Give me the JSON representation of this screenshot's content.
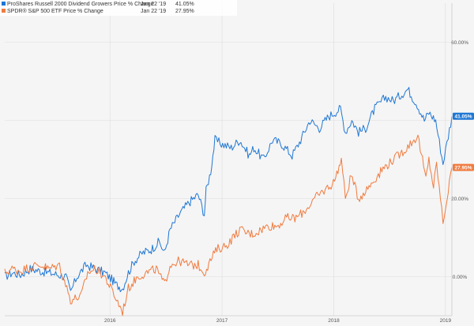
{
  "chart_data": {
    "type": "line",
    "title": "",
    "xlabel": "",
    "ylabel": "",
    "x_range": [
      "2015-01-22",
      "2019-01-22"
    ],
    "ylim": [
      -10,
      70
    ],
    "y_ticks": [
      {
        "value": 0,
        "label": "0.00%"
      },
      {
        "value": 20,
        "label": "20.00%"
      },
      {
        "value": 40,
        "label": ""
      },
      {
        "value": 60,
        "label": "60.00%"
      }
    ],
    "x_ticks": [
      {
        "date": "2016-01-01",
        "label": "2016"
      },
      {
        "date": "2017-01-01",
        "label": "2017"
      },
      {
        "date": "2018-01-01",
        "label": "2018"
      },
      {
        "date": "2019-01-01",
        "label": "2019"
      }
    ],
    "grid": true,
    "legend_position": "top-left",
    "series": [
      {
        "name": "ProShares Russell 2000 Dividend Growers Price % Change",
        "legend_date": "Jan 22 '19",
        "legend_value": "41.05%",
        "end_label": "41.05%",
        "color": "#1f77d4",
        "points": [
          [
            "2015-01-22",
            0
          ],
          [
            "2015-02-15",
            1
          ],
          [
            "2015-03-15",
            0.5
          ],
          [
            "2015-04-15",
            2
          ],
          [
            "2015-05-15",
            1.5
          ],
          [
            "2015-06-15",
            1
          ],
          [
            "2015-07-15",
            0.5
          ],
          [
            "2015-08-10",
            0
          ],
          [
            "2015-08-25",
            -4
          ],
          [
            "2015-09-15",
            0
          ],
          [
            "2015-10-15",
            3
          ],
          [
            "2015-11-15",
            2
          ],
          [
            "2015-12-15",
            1
          ],
          [
            "2016-01-10",
            -1
          ],
          [
            "2016-01-20",
            -2
          ],
          [
            "2016-02-11",
            -3
          ],
          [
            "2016-03-01",
            1
          ],
          [
            "2016-03-20",
            4
          ],
          [
            "2016-04-15",
            6
          ],
          [
            "2016-05-15",
            7
          ],
          [
            "2016-06-10",
            9
          ],
          [
            "2016-06-27",
            6
          ],
          [
            "2016-07-15",
            12
          ],
          [
            "2016-08-15",
            16
          ],
          [
            "2016-09-15",
            19
          ],
          [
            "2016-10-15",
            21
          ],
          [
            "2016-11-04",
            16
          ],
          [
            "2016-11-10",
            22
          ],
          [
            "2016-11-25",
            27
          ],
          [
            "2016-12-09",
            35
          ],
          [
            "2016-12-30",
            34
          ],
          [
            "2017-01-31",
            33
          ],
          [
            "2017-02-28",
            35
          ],
          [
            "2017-03-31",
            31
          ],
          [
            "2017-04-15",
            33
          ],
          [
            "2017-05-17",
            30
          ],
          [
            "2017-06-15",
            35
          ],
          [
            "2017-07-15",
            34
          ],
          [
            "2017-08-18",
            31
          ],
          [
            "2017-09-15",
            35
          ],
          [
            "2017-10-15",
            40
          ],
          [
            "2017-11-15",
            38
          ],
          [
            "2017-12-15",
            41
          ],
          [
            "2018-01-23",
            43
          ],
          [
            "2018-02-08",
            37
          ],
          [
            "2018-03-01",
            40
          ],
          [
            "2018-03-23",
            37
          ],
          [
            "2018-04-15",
            38
          ],
          [
            "2018-05-15",
            43
          ],
          [
            "2018-06-20",
            46
          ],
          [
            "2018-07-15",
            45
          ],
          [
            "2018-08-31",
            48
          ],
          [
            "2018-09-15",
            46
          ],
          [
            "2018-10-01",
            44
          ],
          [
            "2018-10-24",
            40
          ],
          [
            "2018-11-08",
            42
          ],
          [
            "2018-11-30",
            40
          ],
          [
            "2018-12-24",
            29
          ],
          [
            "2019-01-10",
            36
          ],
          [
            "2019-01-22",
            41.05
          ]
        ]
      },
      {
        "name": "SPDR® S&P 500 ETF Price % Change",
        "legend_date": "Jan 22 '19",
        "legend_value": "27.95%",
        "end_label": "27.95%",
        "color": "#f07b3f",
        "points": [
          [
            "2015-01-22",
            1
          ],
          [
            "2015-02-15",
            2
          ],
          [
            "2015-03-15",
            1.5
          ],
          [
            "2015-04-15",
            2.5
          ],
          [
            "2015-05-20",
            3
          ],
          [
            "2015-06-15",
            2
          ],
          [
            "2015-07-20",
            3
          ],
          [
            "2015-08-25",
            -6
          ],
          [
            "2015-09-28",
            -5
          ],
          [
            "2015-10-20",
            1
          ],
          [
            "2015-11-15",
            2
          ],
          [
            "2015-12-15",
            0
          ],
          [
            "2016-01-10",
            -4
          ],
          [
            "2016-02-11",
            -9
          ],
          [
            "2016-03-01",
            -3
          ],
          [
            "2016-03-31",
            0
          ],
          [
            "2016-04-30",
            1
          ],
          [
            "2016-05-31",
            2
          ],
          [
            "2016-06-27",
            -2
          ],
          [
            "2016-07-15",
            3
          ],
          [
            "2016-08-15",
            4
          ],
          [
            "2016-09-15",
            3
          ],
          [
            "2016-10-15",
            3
          ],
          [
            "2016-11-04",
            1
          ],
          [
            "2016-11-30",
            5
          ],
          [
            "2016-12-15",
            7
          ],
          [
            "2017-01-15",
            8
          ],
          [
            "2017-02-28",
            12
          ],
          [
            "2017-03-31",
            11
          ],
          [
            "2017-04-15",
            11
          ],
          [
            "2017-05-31",
            13
          ],
          [
            "2017-06-30",
            13
          ],
          [
            "2017-07-31",
            15
          ],
          [
            "2017-08-31",
            15
          ],
          [
            "2017-09-30",
            17
          ],
          [
            "2017-10-31",
            20
          ],
          [
            "2017-11-30",
            22
          ],
          [
            "2017-12-31",
            24
          ],
          [
            "2018-01-26",
            30
          ],
          [
            "2018-02-08",
            20
          ],
          [
            "2018-02-27",
            26
          ],
          [
            "2018-03-23",
            20
          ],
          [
            "2018-04-15",
            22
          ],
          [
            "2018-05-15",
            25
          ],
          [
            "2018-06-15",
            28
          ],
          [
            "2018-07-15",
            30
          ],
          [
            "2018-08-15",
            32
          ],
          [
            "2018-09-20",
            35
          ],
          [
            "2018-10-03",
            36
          ],
          [
            "2018-10-29",
            25
          ],
          [
            "2018-11-08",
            30
          ],
          [
            "2018-11-23",
            23
          ],
          [
            "2018-12-03",
            29
          ],
          [
            "2018-12-24",
            14
          ],
          [
            "2019-01-10",
            22
          ],
          [
            "2019-01-22",
            27.95
          ]
        ]
      }
    ]
  }
}
